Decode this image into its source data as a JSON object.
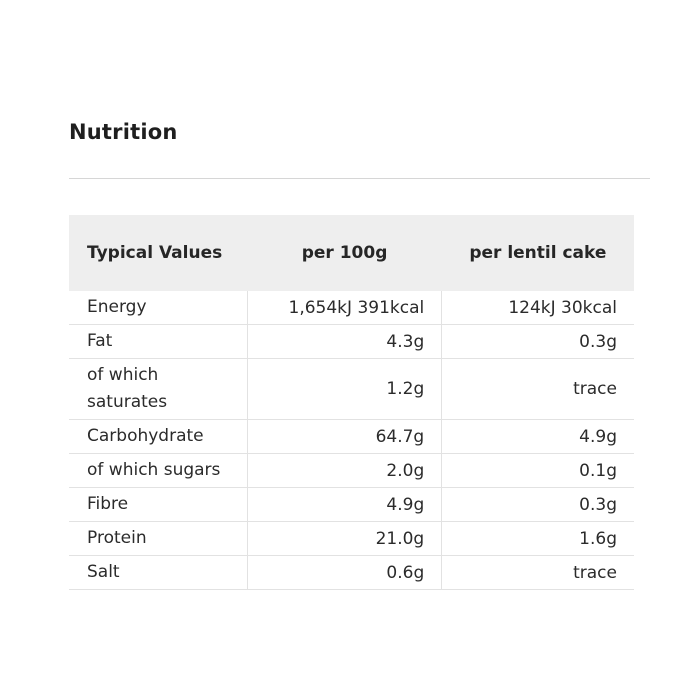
{
  "section": {
    "title": "Nutrition"
  },
  "table": {
    "headers": [
      "Typical Values",
      "per 100g",
      "per lentil cake"
    ],
    "rows": [
      {
        "label": "Energy",
        "per_100g": "1,654kJ 391kcal",
        "per_cake": "124kJ 30kcal"
      },
      {
        "label": "Fat",
        "per_100g": "4.3g",
        "per_cake": "0.3g"
      },
      {
        "label": "of which saturates",
        "per_100g": "1.2g",
        "per_cake": "trace"
      },
      {
        "label": "Carbohydrate",
        "per_100g": "64.7g",
        "per_cake": "4.9g"
      },
      {
        "label": "of which sugars",
        "per_100g": "2.0g",
        "per_cake": "0.1g"
      },
      {
        "label": "Fibre",
        "per_100g": "4.9g",
        "per_cake": "0.3g"
      },
      {
        "label": "Protein",
        "per_100g": "21.0g",
        "per_cake": "1.6g"
      },
      {
        "label": "Salt",
        "per_100g": "0.6g",
        "per_cake": "trace"
      }
    ]
  }
}
